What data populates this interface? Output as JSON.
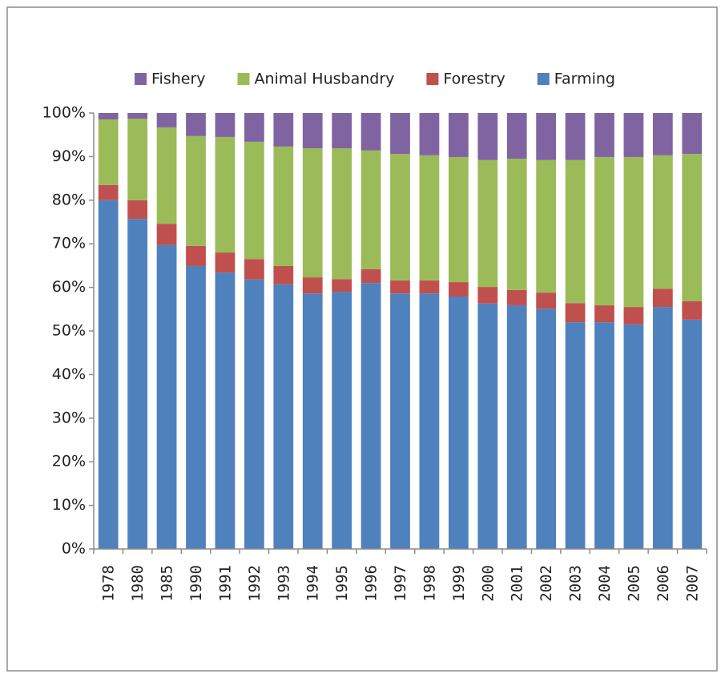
{
  "chart_data": {
    "type": "stacked_bar",
    "categories": [
      "1978",
      "1980",
      "1985",
      "1990",
      "1991",
      "1992",
      "1993",
      "1994",
      "1995",
      "1996",
      "1997",
      "1998",
      "1999",
      "2000",
      "2001",
      "2002",
      "2003",
      "2004",
      "2005",
      "2006",
      "2007"
    ],
    "series": [
      {
        "name": "Farming",
        "color": "#4f81bd",
        "values": [
          80.0,
          75.7,
          69.7,
          64.9,
          63.4,
          61.8,
          60.7,
          58.6,
          59.0,
          61.0,
          58.6,
          58.6,
          57.9,
          56.3,
          55.9,
          55.1,
          52.0,
          52.0,
          51.5,
          55.5,
          52.6
        ]
      },
      {
        "name": "Forestry",
        "color": "#c0504d",
        "values": [
          3.5,
          4.3,
          4.9,
          4.6,
          4.6,
          4.7,
          4.2,
          3.7,
          2.9,
          3.2,
          3.0,
          3.0,
          3.3,
          3.8,
          3.5,
          3.7,
          4.4,
          3.9,
          4.0,
          4.2,
          4.2
        ]
      },
      {
        "name": "Animal Husbandry",
        "color": "#9bbb59",
        "values": [
          15.0,
          18.7,
          22.1,
          25.2,
          26.5,
          26.9,
          27.4,
          29.6,
          30.0,
          27.2,
          29.0,
          28.7,
          28.7,
          29.1,
          30.1,
          30.4,
          32.8,
          34.0,
          34.4,
          30.6,
          33.8
        ]
      },
      {
        "name": "Fishery",
        "color": "#8064a2",
        "values": [
          1.5,
          1.3,
          3.3,
          5.3,
          5.5,
          6.6,
          7.7,
          8.1,
          8.1,
          8.6,
          9.4,
          9.7,
          10.1,
          10.8,
          10.5,
          10.8,
          10.8,
          10.1,
          10.1,
          9.7,
          9.4
        ]
      }
    ],
    "ylim": [
      0,
      100
    ],
    "yticks": [
      {
        "value": 0,
        "label": "0%"
      },
      {
        "value": 10,
        "label": "10%"
      },
      {
        "value": 20,
        "label": "20%"
      },
      {
        "value": 30,
        "label": "30%"
      },
      {
        "value": 40,
        "label": "40%"
      },
      {
        "value": 50,
        "label": "50%"
      },
      {
        "value": 60,
        "label": "60%"
      },
      {
        "value": 70,
        "label": "70%"
      },
      {
        "value": 80,
        "label": "80%"
      },
      {
        "value": 90,
        "label": "90%"
      },
      {
        "value": 100,
        "label": "100%"
      }
    ],
    "legend": "top",
    "legend_order": "reverse"
  }
}
